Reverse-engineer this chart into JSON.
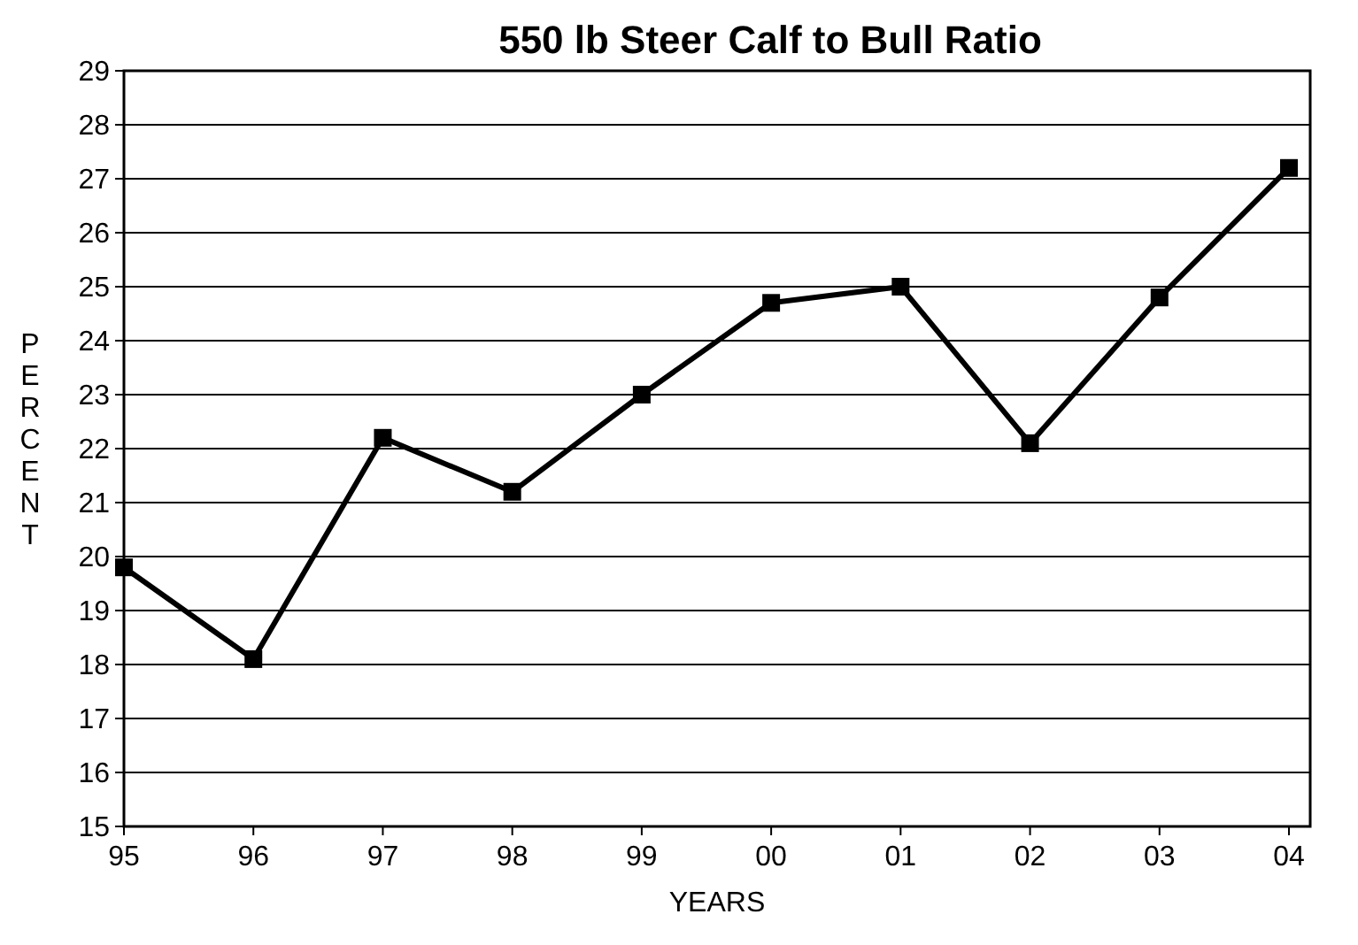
{
  "chart_data": {
    "type": "line",
    "title": "550 lb Steer Calf to Bull Ratio",
    "xlabel": "YEARS",
    "ylabel": "PERCENT",
    "categories": [
      "95",
      "96",
      "97",
      "98",
      "99",
      "00",
      "01",
      "02",
      "03",
      "04"
    ],
    "series": [
      {
        "color": "#000000",
        "values": [
          19.8,
          18.1,
          22.2,
          21.2,
          23.0,
          24.7,
          25.0,
          22.1,
          24.8,
          27.2
        ]
      }
    ],
    "ylim": [
      15,
      29
    ],
    "yticks": [
      15,
      16,
      17,
      18,
      19,
      20,
      21,
      22,
      23,
      24,
      25,
      26,
      27,
      28,
      29
    ],
    "grid": "y",
    "marker": "square",
    "line_style": "solid"
  }
}
